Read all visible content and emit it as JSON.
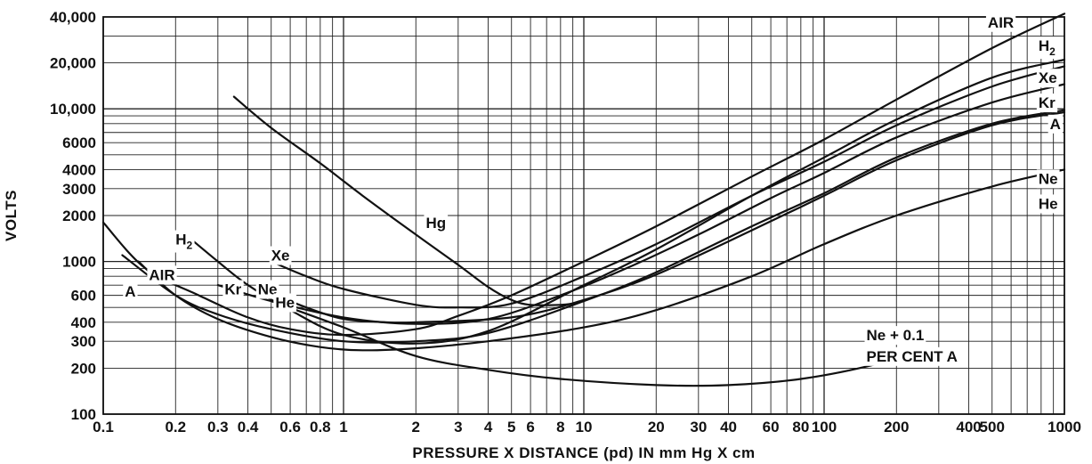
{
  "chart_data": {
    "type": "line",
    "x_scale": "log",
    "y_scale": "log",
    "xlim": [
      0.1,
      1000
    ],
    "ylim": [
      100,
      40000
    ],
    "xlabel": "PRESSURE X DISTANCE (pd) IN mm Hg X cm",
    "ylabel": "VOLTS",
    "grid": true,
    "x_ticks": [
      {
        "value": 0.1,
        "label": "0.1"
      },
      {
        "value": 0.2,
        "label": "0.2"
      },
      {
        "value": 0.3,
        "label": "0.3"
      },
      {
        "value": 0.4,
        "label": "0.4"
      },
      {
        "value": 0.6,
        "label": "0.6"
      },
      {
        "value": 0.8,
        "label": "0.8"
      },
      {
        "value": 1,
        "label": "1"
      },
      {
        "value": 2,
        "label": "2"
      },
      {
        "value": 3,
        "label": "3"
      },
      {
        "value": 4,
        "label": "4"
      },
      {
        "value": 5,
        "label": "5"
      },
      {
        "value": 6,
        "label": "6"
      },
      {
        "value": 8,
        "label": "8"
      },
      {
        "value": 10,
        "label": "10"
      },
      {
        "value": 20,
        "label": "20"
      },
      {
        "value": 30,
        "label": "30"
      },
      {
        "value": 40,
        "label": "40"
      },
      {
        "value": 60,
        "label": "60"
      },
      {
        "value": 80,
        "label": "80"
      },
      {
        "value": 100,
        "label": "100"
      },
      {
        "value": 200,
        "label": "200"
      },
      {
        "value": 400,
        "label": "400"
      },
      {
        "value": 500,
        "label": "500"
      },
      {
        "value": 1000,
        "label": "1000"
      }
    ],
    "y_ticks": [
      {
        "value": 100,
        "label": "100"
      },
      {
        "value": 200,
        "label": "200"
      },
      {
        "value": 300,
        "label": "300"
      },
      {
        "value": 400,
        "label": "400"
      },
      {
        "value": 600,
        "label": "600"
      },
      {
        "value": 1000,
        "label": "1000"
      },
      {
        "value": 2000,
        "label": "2000"
      },
      {
        "value": 3000,
        "label": "3000"
      },
      {
        "value": 4000,
        "label": "4000"
      },
      {
        "value": 6000,
        "label": "6000"
      },
      {
        "value": 10000,
        "label": "10,000"
      },
      {
        "value": 20000,
        "label": "20,000"
      },
      {
        "value": 40000,
        "label": "40,000"
      }
    ],
    "series": [
      {
        "name": "Hg",
        "points": [
          [
            0.35,
            12000
          ],
          [
            0.5,
            7500
          ],
          [
            0.8,
            4400
          ],
          [
            1.2,
            2700
          ],
          [
            2,
            1500
          ],
          [
            3,
            950
          ],
          [
            4,
            680
          ],
          [
            5,
            560
          ],
          [
            6,
            520
          ],
          [
            8,
            520
          ],
          [
            9,
            530
          ]
        ]
      },
      {
        "name": "AIR",
        "points": [
          [
            0.1,
            1800
          ],
          [
            0.15,
            900
          ],
          [
            0.25,
            600
          ],
          [
            0.4,
            430
          ],
          [
            0.6,
            360
          ],
          [
            1,
            330
          ],
          [
            2,
            360
          ],
          [
            3,
            440
          ],
          [
            5,
            600
          ],
          [
            10,
            1000
          ],
          [
            20,
            1700
          ],
          [
            50,
            3600
          ],
          [
            100,
            6300
          ],
          [
            200,
            11500
          ],
          [
            500,
            25000
          ],
          [
            1000,
            42000
          ]
        ]
      },
      {
        "name": "H2",
        "points": [
          [
            0.22,
            1500
          ],
          [
            0.3,
            1000
          ],
          [
            0.4,
            700
          ],
          [
            0.6,
            480
          ],
          [
            1,
            330
          ],
          [
            2,
            290
          ],
          [
            4,
            350
          ],
          [
            10,
            700
          ],
          [
            20,
            1200
          ],
          [
            50,
            2700
          ],
          [
            100,
            4800
          ],
          [
            200,
            8500
          ],
          [
            500,
            16000
          ],
          [
            1000,
            21000
          ]
        ]
      },
      {
        "name": "Xe",
        "points": [
          [
            0.5,
            1000
          ],
          [
            0.7,
            800
          ],
          [
            1,
            660
          ],
          [
            2,
            520
          ],
          [
            3,
            500
          ],
          [
            5,
            530
          ],
          [
            10,
            800
          ],
          [
            20,
            1300
          ],
          [
            50,
            2700
          ],
          [
            100,
            4500
          ],
          [
            200,
            7800
          ],
          [
            500,
            14000
          ],
          [
            1000,
            19000
          ]
        ]
      },
      {
        "name": "Kr",
        "points": [
          [
            0.3,
            700
          ],
          [
            0.5,
            550
          ],
          [
            1,
            430
          ],
          [
            2,
            390
          ],
          [
            4,
            420
          ],
          [
            8,
            600
          ],
          [
            15,
            900
          ],
          [
            30,
            1500
          ],
          [
            60,
            2600
          ],
          [
            100,
            3800
          ],
          [
            200,
            6500
          ],
          [
            500,
            11000
          ],
          [
            1000,
            14500
          ]
        ]
      },
      {
        "name": "A",
        "points": [
          [
            0.12,
            1100
          ],
          [
            0.2,
            600
          ],
          [
            0.3,
            450
          ],
          [
            0.5,
            360
          ],
          [
            1,
            300
          ],
          [
            2,
            300
          ],
          [
            4,
            340
          ],
          [
            10,
            550
          ],
          [
            20,
            850
          ],
          [
            50,
            1700
          ],
          [
            100,
            2800
          ],
          [
            200,
            4800
          ],
          [
            500,
            8000
          ],
          [
            1000,
            9800
          ]
        ]
      },
      {
        "name": "Ne",
        "points": [
          [
            0.5,
            620
          ],
          [
            0.7,
            500
          ],
          [
            1,
            420
          ],
          [
            1.5,
            400
          ],
          [
            2,
            400
          ],
          [
            5,
            430
          ],
          [
            10,
            560
          ],
          [
            20,
            820
          ],
          [
            50,
            1600
          ],
          [
            100,
            2700
          ],
          [
            200,
            4600
          ],
          [
            500,
            7800
          ],
          [
            1000,
            9500
          ]
        ]
      },
      {
        "name": "He",
        "points": [
          [
            0.14,
            1000
          ],
          [
            0.2,
            600
          ],
          [
            0.3,
            420
          ],
          [
            0.5,
            320
          ],
          [
            0.8,
            275
          ],
          [
            1.2,
            262
          ],
          [
            2,
            270
          ],
          [
            4,
            300
          ],
          [
            10,
            370
          ],
          [
            20,
            480
          ],
          [
            50,
            800
          ],
          [
            100,
            1300
          ],
          [
            200,
            2000
          ],
          [
            500,
            3100
          ],
          [
            1000,
            4000
          ]
        ]
      },
      {
        "name": "Ne + 0.1 PER CENT A",
        "points": [
          [
            0.5,
            550
          ],
          [
            1,
            370
          ],
          [
            2,
            240
          ],
          [
            4,
            195
          ],
          [
            8,
            170
          ],
          [
            20,
            155
          ],
          [
            40,
            155
          ],
          [
            80,
            170
          ],
          [
            150,
            205
          ],
          [
            250,
            260
          ]
        ]
      }
    ],
    "labels": [
      {
        "text": "AIR",
        "x": 480,
        "y": 37000
      },
      {
        "text": "H",
        "sub": "2",
        "x": 780,
        "y": 26000
      },
      {
        "text": "Xe",
        "x": 780,
        "y": 16000
      },
      {
        "text": "Kr",
        "x": 780,
        "y": 11000
      },
      {
        "text": "A",
        "x": 870,
        "y": 8000
      },
      {
        "text": "Ne",
        "x": 780,
        "y": 3500
      },
      {
        "text": "He",
        "x": 780,
        "y": 2400
      },
      {
        "text": "Hg",
        "x": 2.2,
        "y": 1800
      },
      {
        "text": "H",
        "sub": "2",
        "x": 0.2,
        "y": 1400
      },
      {
        "text": "Xe",
        "x": 0.5,
        "y": 1100
      },
      {
        "text": "AIR",
        "x": 0.155,
        "y": 820
      },
      {
        "text": "A",
        "x": 0.123,
        "y": 640
      },
      {
        "text": "Kr",
        "x": 0.32,
        "y": 660
      },
      {
        "text": "Ne",
        "x": 0.44,
        "y": 660
      },
      {
        "text": "He",
        "x": 0.52,
        "y": 540
      },
      {
        "text": "Ne + 0.1",
        "x": 150,
        "y": 330
      },
      {
        "text": "PER CENT A",
        "x": 150,
        "y": 240
      }
    ]
  }
}
